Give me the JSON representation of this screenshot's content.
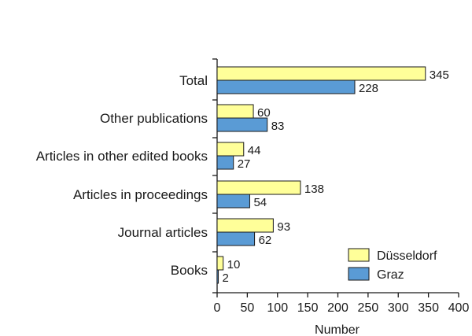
{
  "chart_data": {
    "type": "bar",
    "orientation": "horizontal",
    "categories": [
      "Books",
      "Journal articles",
      "Articles in proceedings",
      "Articles in other edited books",
      "Other publications",
      "Total"
    ],
    "series": [
      {
        "name": "Düsseldorf",
        "values": [
          10,
          93,
          138,
          44,
          60,
          345
        ],
        "color": "#ffff99"
      },
      {
        "name": "Graz",
        "values": [
          2,
          62,
          54,
          27,
          83,
          228
        ],
        "color": "#5a9bd5"
      }
    ],
    "xlabel": "Number",
    "ylabel": "",
    "xlim": [
      0,
      400
    ],
    "xticks": [
      0,
      50,
      100,
      150,
      200,
      250,
      300,
      350,
      400
    ],
    "xtick_labels": [
      "0",
      "50",
      "100",
      "150",
      "200",
      "250",
      "300",
      "350",
      "400"
    ],
    "grid": false,
    "legend_position": "bottom-right",
    "data_labels": true
  }
}
